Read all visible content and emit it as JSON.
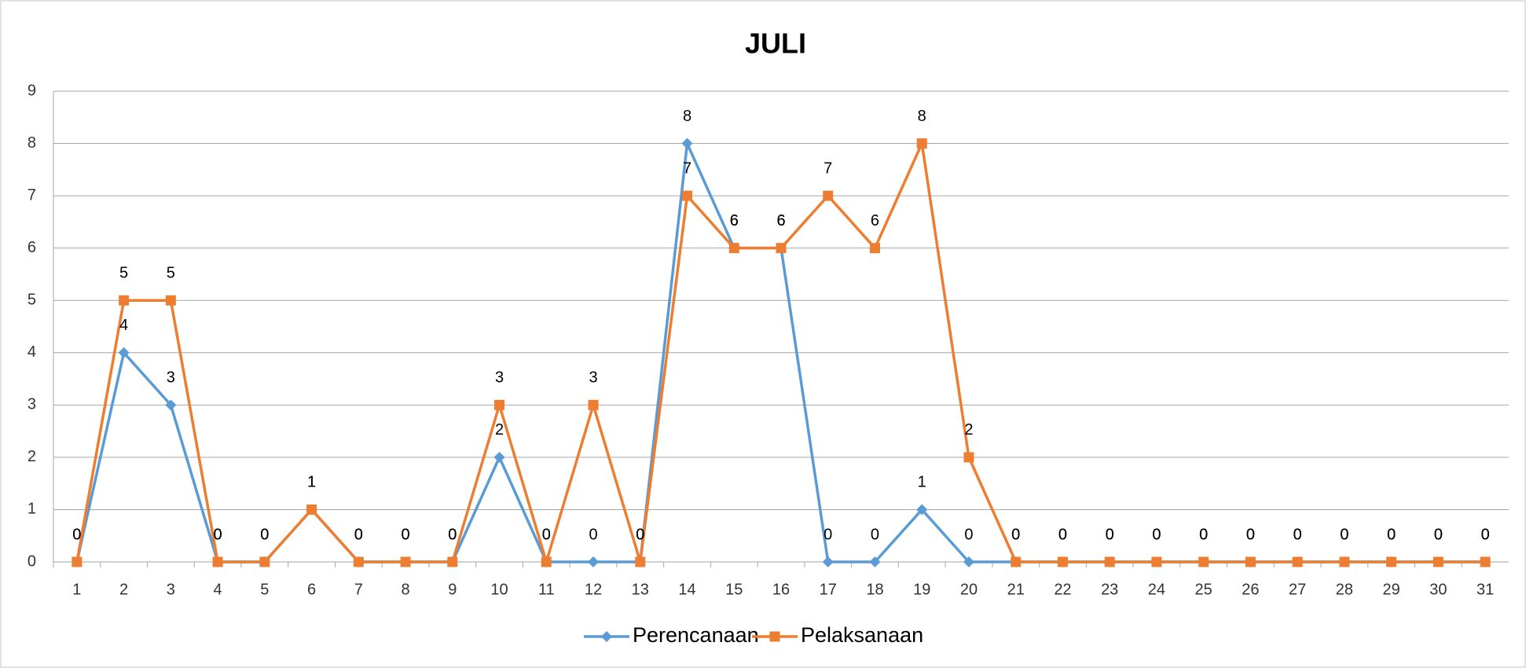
{
  "chart_data": {
    "type": "line",
    "title": "JULI",
    "categories": [
      "1",
      "2",
      "3",
      "4",
      "5",
      "6",
      "7",
      "8",
      "9",
      "10",
      "11",
      "12",
      "13",
      "14",
      "15",
      "16",
      "17",
      "18",
      "19",
      "20",
      "21",
      "22",
      "23",
      "24",
      "25",
      "26",
      "27",
      "28",
      "29",
      "30",
      "31"
    ],
    "series": [
      {
        "name": "Perencanaan",
        "color": "#5b9bd5",
        "marker": "diamond",
        "values": [
          0,
          4,
          3,
          0,
          0,
          1,
          0,
          0,
          0,
          2,
          0,
          0,
          0,
          8,
          6,
          6,
          0,
          0,
          1,
          0,
          0,
          0,
          0,
          0,
          0,
          0,
          0,
          0,
          0,
          0,
          0
        ]
      },
      {
        "name": "Pelaksanaan",
        "color": "#ed7d31",
        "marker": "square",
        "values": [
          0,
          5,
          5,
          0,
          0,
          1,
          0,
          0,
          0,
          3,
          0,
          3,
          0,
          7,
          6,
          6,
          7,
          6,
          8,
          2,
          0,
          0,
          0,
          0,
          0,
          0,
          0,
          0,
          0,
          0,
          0
        ]
      }
    ],
    "ylim": [
      0,
      9
    ],
    "yticks": [
      0,
      1,
      2,
      3,
      4,
      5,
      6,
      7,
      8,
      9
    ],
    "grid": true,
    "legend": "bottom"
  }
}
